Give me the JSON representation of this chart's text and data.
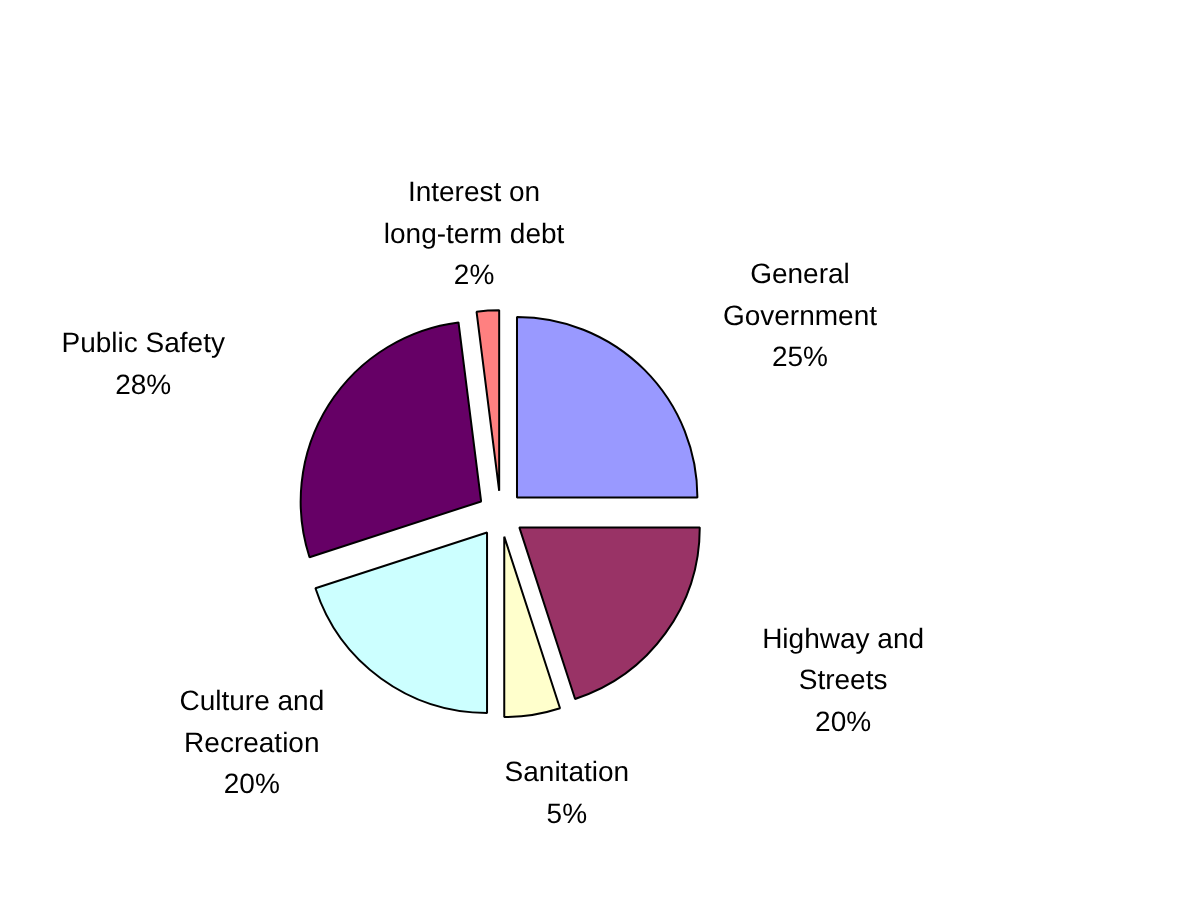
{
  "chart_data": {
    "type": "pie",
    "categories": [
      "General Government",
      "Highway and Streets",
      "Sanitation",
      "Culture and Recreation",
      "Public Safety",
      "Interest on long-term debt"
    ],
    "values": [
      25,
      20,
      5,
      20,
      28,
      2
    ],
    "colors": [
      "#9999ff",
      "#993366",
      "#ffffcc",
      "#ccffff",
      "#660066",
      "#ff8080"
    ],
    "value_labels": [
      "25%",
      "20%",
      "5%",
      "20%",
      "28%",
      "2%"
    ]
  }
}
